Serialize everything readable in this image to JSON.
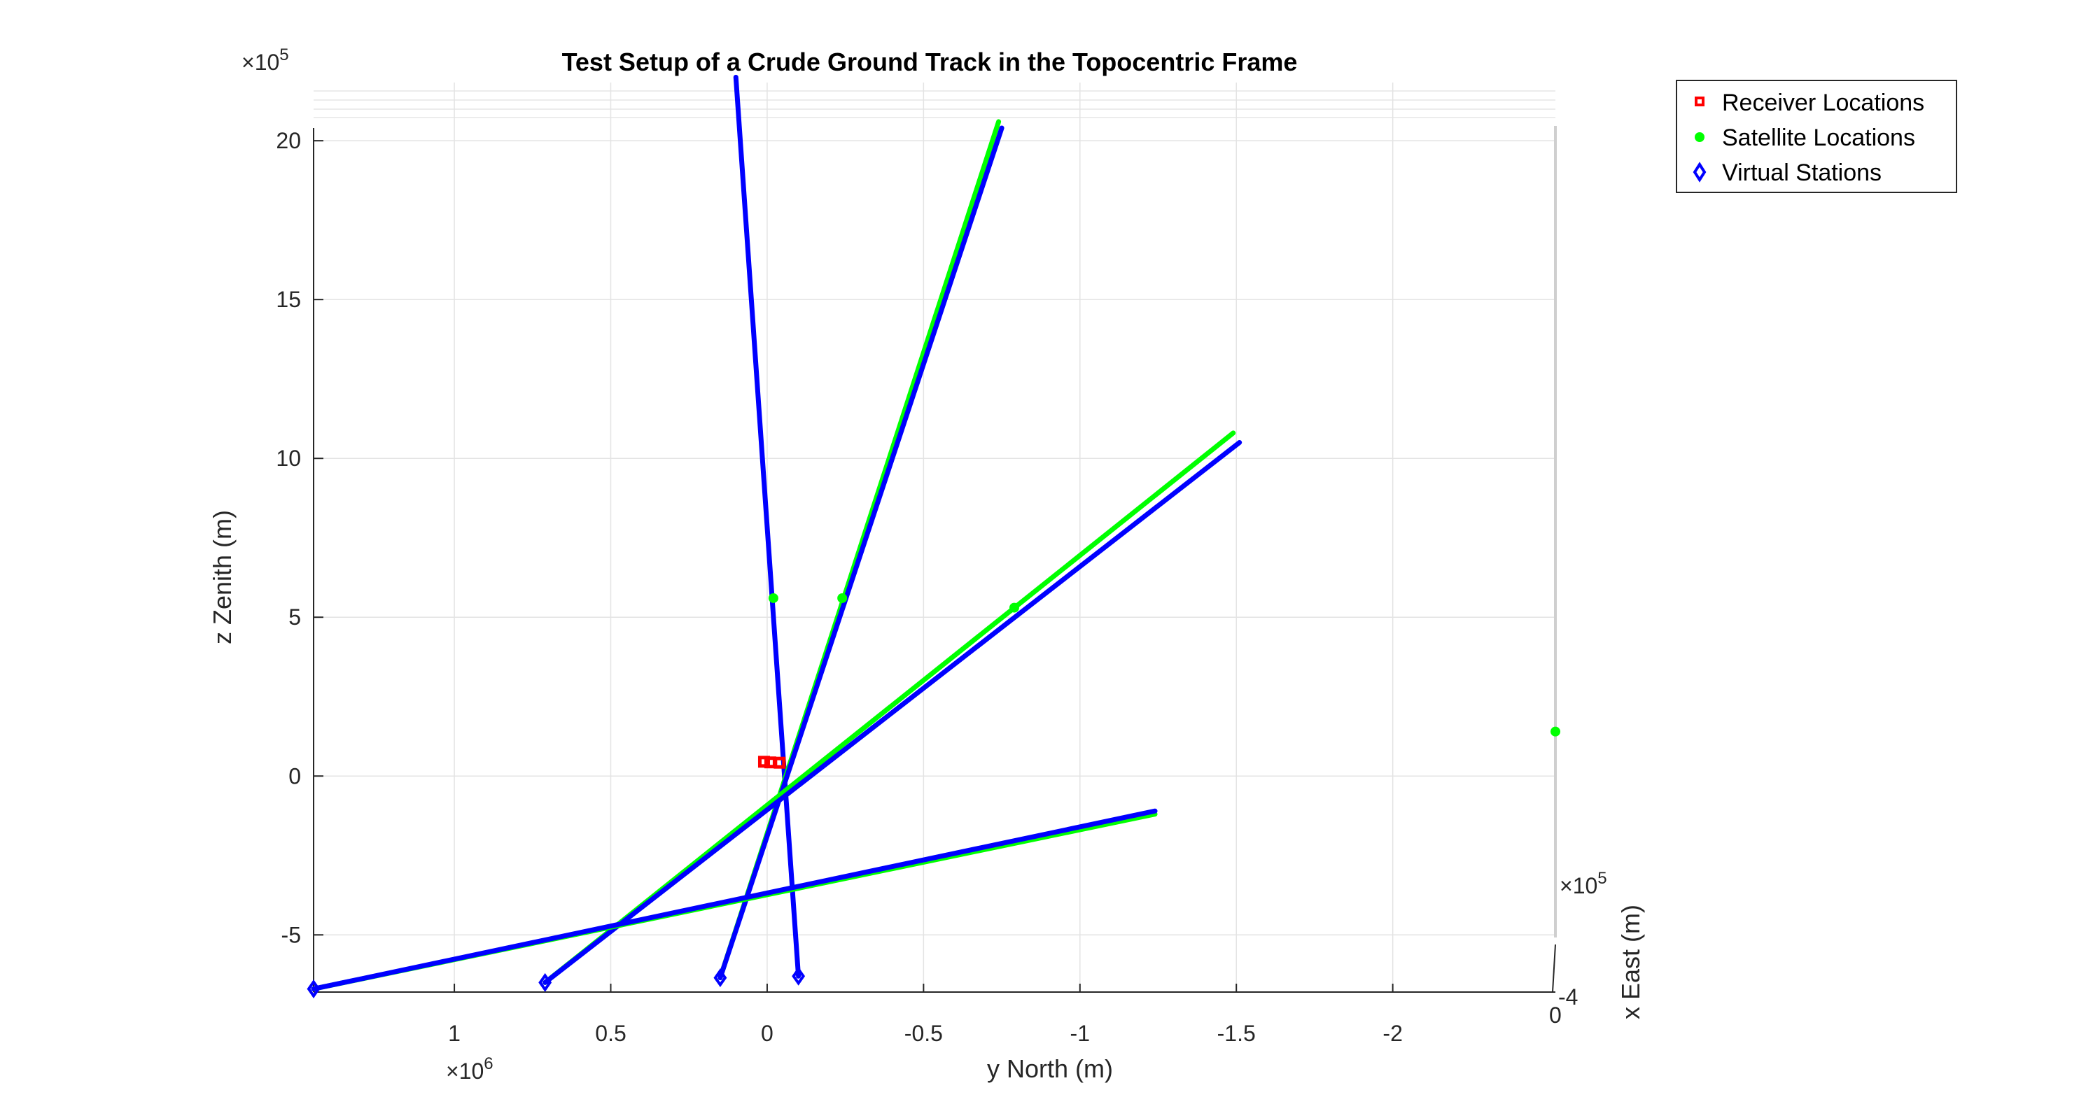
{
  "chart_data": {
    "type": "line",
    "title": "Test Setup of a Crude Ground Track in the Topocentric Frame",
    "xlabel": "y North (m)",
    "ylabel": "z Zenith (m)",
    "zlabel": "x East (m)",
    "x_reversed": true,
    "xlim": [
      1.45,
      -2.52
    ],
    "ylim": [
      -6.8,
      20.4
    ],
    "x_exponent": "×10^6",
    "y_exponent": "×10^5",
    "z_exponent": "×10^5",
    "x_exponent_label": "×10",
    "x_exponent_power": "6",
    "y_exponent_label": "×10",
    "y_exponent_power": "5",
    "z_exponent_label": "×10",
    "z_exponent_power": "5",
    "x_ticks": [
      1,
      0.5,
      0,
      -0.5,
      -1,
      -1.5,
      -2
    ],
    "x_tick_labels": [
      "1",
      "0.5",
      "0",
      "-0.5",
      "-1",
      "-1.5",
      "-2"
    ],
    "y_ticks": [
      -5,
      0,
      5,
      10,
      15,
      20
    ],
    "y_tick_labels": [
      "-5",
      "0",
      "5",
      "10",
      "15",
      "20"
    ],
    "z_tick_labels": [
      "-4",
      "0"
    ],
    "grid": true,
    "legend_position": "top-right outside",
    "legend": [
      "Receiver Locations",
      "Satellite Locations",
      "Virtual Stations"
    ],
    "series": [
      {
        "name": "Receiver Locations",
        "marker": "square",
        "color": "#ff0000",
        "points": [
          [
            0.01,
            0.45
          ],
          [
            -0.01,
            0.43
          ],
          [
            -0.04,
            0.42
          ]
        ]
      },
      {
        "name": "Satellite Locations",
        "marker": "circle",
        "color": "#00ff00",
        "points": [
          [
            -0.02,
            5.6
          ],
          [
            -0.24,
            5.6
          ],
          [
            -0.79,
            5.3
          ],
          [
            -2.52,
            1.4
          ]
        ]
      },
      {
        "name": "Virtual Stations",
        "marker": "diamond",
        "color": "#0000ff",
        "points": [
          [
            1.45,
            -6.7
          ],
          [
            0.71,
            -6.5
          ],
          [
            0.15,
            -6.35
          ],
          [
            -0.1,
            -6.3
          ]
        ]
      }
    ],
    "lines": [
      {
        "color": "#0000ff",
        "points": [
          [
            0.1,
            22.0
          ],
          [
            -0.1,
            -6.3
          ]
        ]
      },
      {
        "color": "#00ff00",
        "points": [
          [
            0.15,
            -6.35
          ],
          [
            -0.74,
            20.6
          ]
        ]
      },
      {
        "color": "#0000ff",
        "points": [
          [
            0.15,
            -6.35
          ],
          [
            -0.75,
            20.4
          ]
        ]
      },
      {
        "color": "#00ff00",
        "points": [
          [
            0.71,
            -6.5
          ],
          [
            -1.49,
            10.8
          ]
        ]
      },
      {
        "color": "#0000ff",
        "points": [
          [
            0.71,
            -6.5
          ],
          [
            -1.51,
            10.5
          ]
        ]
      },
      {
        "color": "#00ff00",
        "points": [
          [
            1.45,
            -6.7
          ],
          [
            -1.24,
            -1.2
          ]
        ]
      },
      {
        "color": "#0000ff",
        "points": [
          [
            1.45,
            -6.7
          ],
          [
            -1.24,
            -1.1
          ]
        ]
      }
    ]
  }
}
